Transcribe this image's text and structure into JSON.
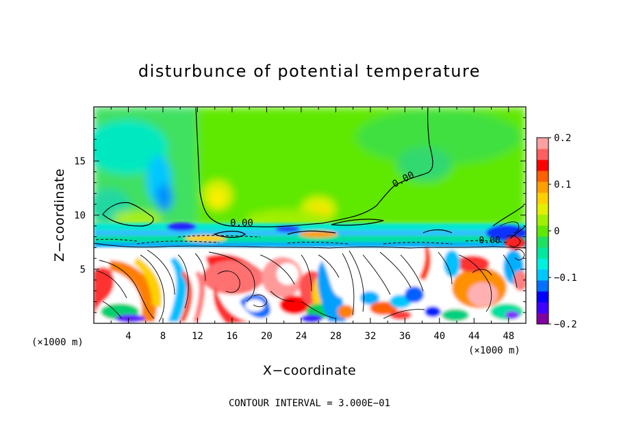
{
  "chart_data": {
    "type": "heatmap",
    "title": "disturbunce of potential temperature",
    "xlabel": "X−coordinate",
    "ylabel": "Z−coordinate",
    "x_unit_left": "(×1000 m)",
    "x_unit_right": "(×1000 m)",
    "footer": "CONTOUR INTERVAL = 3.000E−01",
    "xlim": [
      0,
      50
    ],
    "ylim": [
      0,
      20
    ],
    "x_ticks": [
      4,
      8,
      12,
      16,
      20,
      24,
      28,
      32,
      36,
      40,
      44,
      48
    ],
    "y_ticks": [
      5,
      10,
      15
    ],
    "color_scale": {
      "min": -0.2,
      "max": 0.2,
      "labels": [
        "0.2",
        "0.1",
        "0",
        "−0.1",
        "−0.2"
      ],
      "label_values": [
        0.2,
        0.1,
        0,
        -0.1,
        -0.2
      ],
      "colors": [
        "#8000a0",
        "#4000ff",
        "#0000ff",
        "#0070ff",
        "#00c8ff",
        "#00f0e0",
        "#00e8a0",
        "#20e060",
        "#60e800",
        "#a0f000",
        "#e0f000",
        "#ffd000",
        "#ffa000",
        "#ff6000",
        "#ff0000",
        "#ff6060",
        "#ffa0a0"
      ]
    },
    "contour_labels": [
      {
        "text": "0.00",
        "x": 26.5,
        "y": 13.1
      },
      {
        "text": "0.00",
        "x": 17.3,
        "y": 9.0
      },
      {
        "text": "0.00",
        "x": 45.8,
        "y": 7.5
      }
    ]
  }
}
